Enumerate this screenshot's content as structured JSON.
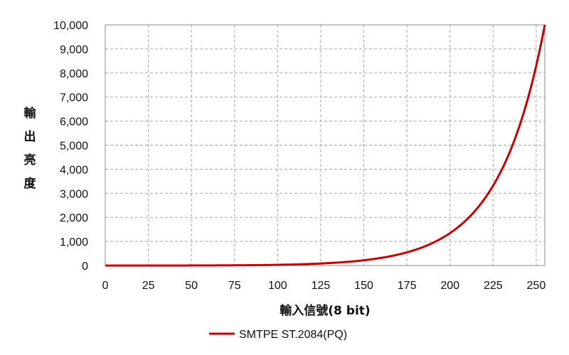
{
  "chart_data": {
    "type": "line",
    "title": "",
    "xlabel": "輸入信號(8 bit)",
    "ylabel": "輸出亮度",
    "xlim": [
      0,
      255
    ],
    "ylim": [
      0,
      10000
    ],
    "x_ticks": [
      0,
      25,
      50,
      75,
      100,
      125,
      150,
      175,
      200,
      225,
      250
    ],
    "x_tick_labels": [
      "0",
      "25",
      "50",
      "75",
      "100",
      "125",
      "150",
      "175",
      "200",
      "225",
      "250"
    ],
    "y_ticks": [
      0,
      1000,
      2000,
      3000,
      4000,
      5000,
      6000,
      7000,
      8000,
      9000,
      10000
    ],
    "y_tick_labels": [
      "0",
      "1,000",
      "2,000",
      "3,000",
      "4,000",
      "5,000",
      "6,000",
      "7,000",
      "8,000",
      "9,000",
      "10,000"
    ],
    "grid": true,
    "legend_position": "bottom-center",
    "colors": {
      "series": "#c00000",
      "grid": "#a6a6a6"
    },
    "series": [
      {
        "name": "SMTPE ST.2084(PQ)",
        "x": [
          0,
          25,
          50,
          75,
          100,
          125,
          150,
          175,
          200,
          225,
          255
        ],
        "y": [
          0,
          1,
          5,
          18,
          50,
          130,
          250,
          580,
          1300,
          3300,
          10000
        ]
      }
    ]
  }
}
